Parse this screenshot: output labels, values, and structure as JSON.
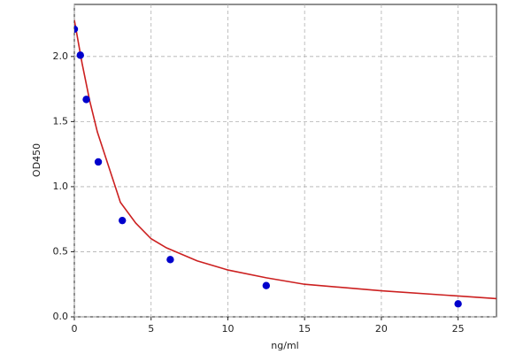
{
  "chart_data": {
    "type": "scatter",
    "xlabel": "ng/ml",
    "ylabel": "OD450",
    "xlim": [
      0,
      27.5
    ],
    "ylim": [
      0,
      2.4
    ],
    "xticks": [
      0,
      5,
      10,
      15,
      20,
      25
    ],
    "yticks": [
      {
        "value": 0,
        "label": "0.0"
      },
      {
        "value": 0.5,
        "label": "0.5"
      },
      {
        "value": 1,
        "label": "1.0"
      },
      {
        "value": 1.5,
        "label": "1.5"
      },
      {
        "value": 2,
        "label": "2.0"
      }
    ],
    "grid": true,
    "series": [
      {
        "type": "line",
        "color": "#cc2020",
        "x": [
          0,
          0.5,
          1,
          1.5,
          2,
          3,
          4,
          5,
          6,
          8,
          10,
          12.5,
          15,
          20,
          25,
          27.5
        ],
        "values": [
          2.28,
          1.95,
          1.66,
          1.42,
          1.24,
          0.88,
          0.72,
          0.6,
          0.53,
          0.43,
          0.36,
          0.3,
          0.25,
          0.2,
          0.16,
          0.14
        ]
      },
      {
        "type": "scatter",
        "color": "#0000cc",
        "x": [
          0,
          0.39,
          0.78,
          1.56,
          3.125,
          6.25,
          12.5,
          25
        ],
        "values": [
          2.21,
          2.01,
          1.67,
          1.19,
          0.74,
          0.44,
          0.24,
          0.1
        ]
      }
    ]
  }
}
